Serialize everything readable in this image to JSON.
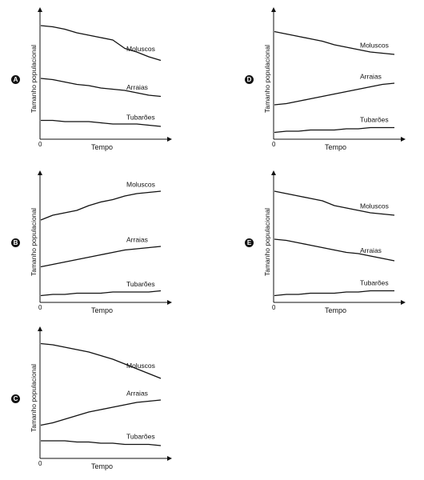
{
  "chart_data": [
    {
      "type": "line",
      "option": "A",
      "xlabel": "Tempo",
      "ylabel": "Tamanho populacional",
      "x_origin_label": "0",
      "x": [
        0,
        1,
        2,
        3,
        4,
        5,
        6,
        7,
        8,
        9,
        10
      ],
      "series": [
        {
          "name": "Moluscos",
          "values": [
            92,
            91,
            89,
            86,
            84,
            82,
            80,
            73,
            70,
            66,
            63
          ]
        },
        {
          "name": "Arraias",
          "values": [
            48,
            47,
            45,
            43,
            42,
            40,
            39,
            38,
            36,
            34,
            33
          ]
        },
        {
          "name": "Tubarões",
          "values": [
            13,
            13,
            12,
            12,
            12,
            11,
            10,
            10,
            10,
            9,
            8
          ]
        }
      ]
    },
    {
      "type": "line",
      "option": "D",
      "xlabel": "Tempo",
      "ylabel": "Tamanho populacional",
      "x_origin_label": "0",
      "x": [
        0,
        1,
        2,
        3,
        4,
        5,
        6,
        7,
        8,
        9,
        10
      ],
      "series": [
        {
          "name": "Moluscos",
          "values": [
            87,
            85,
            83,
            81,
            79,
            76,
            74,
            72,
            70,
            69,
            68
          ]
        },
        {
          "name": "Arraias",
          "values": [
            26,
            27,
            29,
            31,
            33,
            35,
            37,
            39,
            41,
            43,
            44
          ]
        },
        {
          "name": "Tubarões",
          "values": [
            3,
            4,
            4,
            5,
            5,
            5,
            6,
            6,
            7,
            7,
            7
          ]
        }
      ]
    },
    {
      "type": "line",
      "option": "B",
      "xlabel": "Tempo",
      "ylabel": "Tamanho populacional",
      "x_origin_label": "0",
      "x": [
        0,
        1,
        2,
        3,
        4,
        5,
        6,
        7,
        8,
        9,
        10
      ],
      "series": [
        {
          "name": "Moluscos",
          "values": [
            66,
            70,
            72,
            74,
            78,
            81,
            83,
            86,
            88,
            89,
            90
          ]
        },
        {
          "name": "Arraias",
          "values": [
            27,
            29,
            31,
            33,
            35,
            37,
            39,
            41,
            42,
            43,
            44
          ]
        },
        {
          "name": "Tubarões",
          "values": [
            3,
            4,
            4,
            5,
            5,
            5,
            6,
            6,
            6,
            6,
            7
          ]
        }
      ]
    },
    {
      "type": "line",
      "option": "E",
      "xlabel": "Tempo",
      "ylabel": "Tamanho populacional",
      "x_origin_label": "0",
      "x": [
        0,
        1,
        2,
        3,
        4,
        5,
        6,
        7,
        8,
        9,
        10
      ],
      "series": [
        {
          "name": "Moluscos",
          "values": [
            90,
            88,
            86,
            84,
            82,
            78,
            76,
            74,
            72,
            71,
            70
          ]
        },
        {
          "name": "Arraias",
          "values": [
            50,
            49,
            47,
            45,
            43,
            41,
            39,
            38,
            36,
            34,
            32
          ]
        },
        {
          "name": "Tubarões",
          "values": [
            3,
            4,
            4,
            5,
            5,
            5,
            6,
            6,
            7,
            7,
            7
          ]
        }
      ]
    },
    {
      "type": "line",
      "option": "C",
      "xlabel": "Tempo",
      "ylabel": "Tamanho populacional",
      "x_origin_label": "0",
      "x": [
        0,
        1,
        2,
        3,
        4,
        5,
        6,
        7,
        8,
        9,
        10
      ],
      "series": [
        {
          "name": "Moluscos",
          "values": [
            93,
            92,
            90,
            88,
            86,
            83,
            80,
            76,
            72,
            68,
            64
          ]
        },
        {
          "name": "Arraias",
          "values": [
            25,
            27,
            30,
            33,
            36,
            38,
            40,
            42,
            44,
            45,
            46
          ]
        },
        {
          "name": "Tubarões",
          "values": [
            12,
            12,
            12,
            11,
            11,
            10,
            10,
            9,
            9,
            9,
            8
          ]
        }
      ]
    }
  ]
}
